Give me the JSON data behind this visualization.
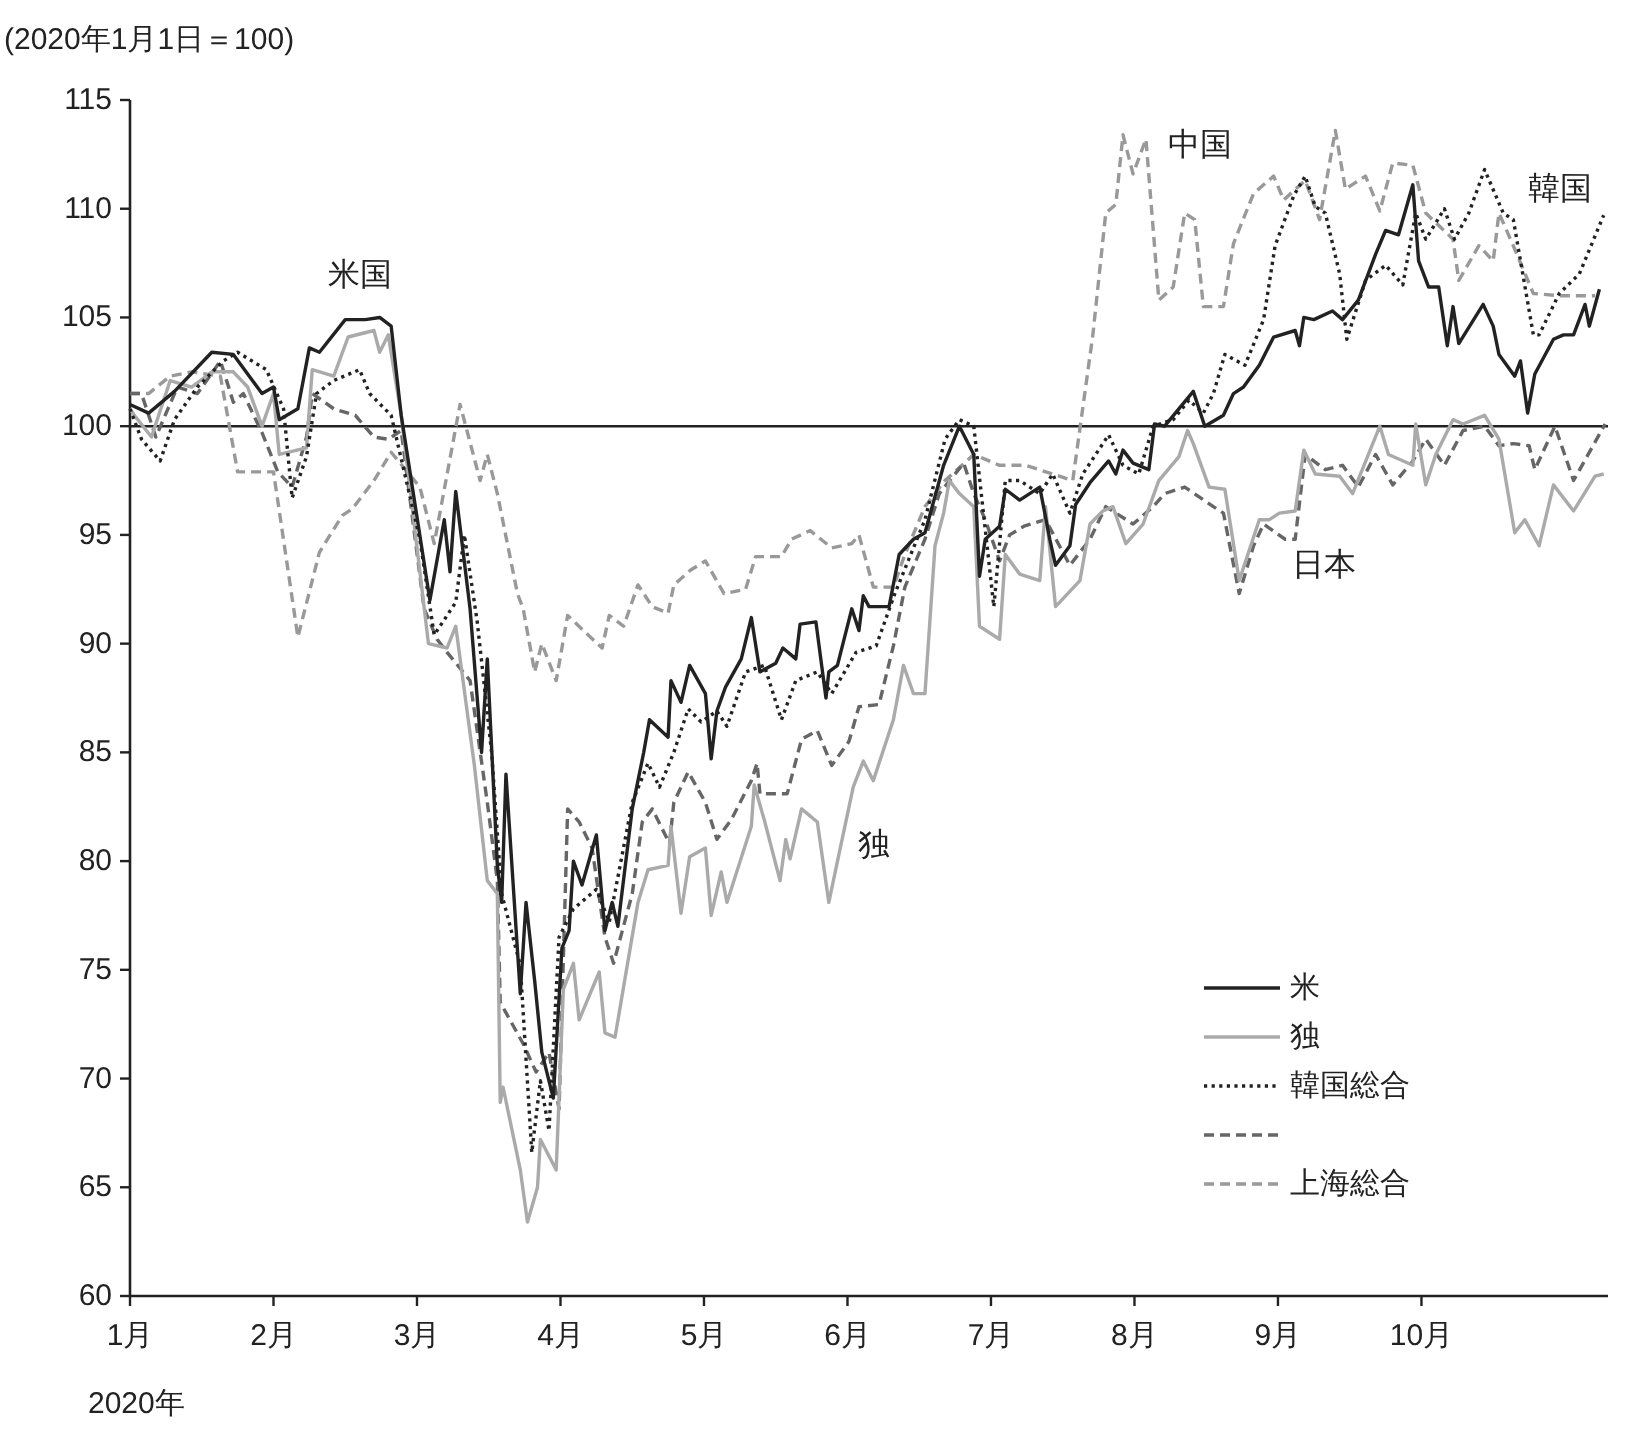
{
  "chart_data": {
    "type": "line",
    "ylabel": "(2020年1月1日＝100)",
    "xlabel": "2020年",
    "xlim": [
      1,
      11.3
    ],
    "ylim": [
      60,
      115
    ],
    "xticks": [
      {
        "value": 1,
        "label": "1月"
      },
      {
        "value": 2,
        "label": "2月"
      },
      {
        "value": 3,
        "label": "3月"
      },
      {
        "value": 4,
        "label": "4月"
      },
      {
        "value": 5,
        "label": "5月"
      },
      {
        "value": 6,
        "label": "6月"
      },
      {
        "value": 7,
        "label": "7月"
      },
      {
        "value": 8,
        "label": "8月"
      },
      {
        "value": 9,
        "label": "9月"
      },
      {
        "value": 10,
        "label": "10月"
      }
    ],
    "yticks": [
      60,
      65,
      70,
      75,
      80,
      85,
      90,
      95,
      100,
      105,
      110,
      115
    ],
    "grid": false,
    "legend": "bottom right",
    "ref_lines": [
      {
        "axis": "y",
        "value": 100,
        "color": "#222222"
      }
    ],
    "annotations": [
      "米国",
      "独",
      "中国",
      "韓国",
      "日本"
    ],
    "series": [
      {
        "name": "米",
        "color": "#222222",
        "line_style": "solid",
        "x": [
          1.0,
          1.13,
          1.31,
          1.57,
          1.72,
          1.92,
          2.0,
          2.04,
          2.17,
          2.25,
          2.32,
          2.5,
          2.64,
          2.74,
          2.82,
          2.89,
          3.09,
          3.19,
          3.23,
          3.27,
          3.37,
          3.45,
          3.49,
          3.56,
          3.59,
          3.62,
          3.72,
          3.76,
          3.82,
          3.87,
          3.95,
          4.01,
          4.06,
          4.09,
          4.15,
          4.25,
          4.31,
          4.36,
          4.4,
          4.5,
          4.58,
          4.62,
          4.75,
          4.77,
          4.84,
          4.9,
          5.01,
          5.05,
          5.09,
          5.15,
          5.26,
          5.33,
          5.39,
          5.5,
          5.55,
          5.64,
          5.67,
          5.78,
          5.85,
          5.87,
          5.93,
          6.03,
          6.08,
          6.11,
          6.15,
          6.29,
          6.36,
          6.46,
          6.54,
          6.67,
          6.78,
          6.88,
          6.92,
          6.96,
          7.06,
          7.1,
          7.2,
          7.34,
          7.41,
          7.45,
          7.55,
          7.59,
          7.69,
          7.82,
          7.87,
          7.92,
          7.99,
          8.1,
          8.14,
          8.21,
          8.41,
          8.49,
          8.62,
          8.69,
          8.76,
          8.87,
          8.97,
          9.12,
          9.15,
          9.18,
          9.25,
          9.38,
          9.45,
          9.56,
          9.68,
          9.75,
          9.84,
          9.94,
          9.98,
          10.05,
          10.12,
          10.18,
          10.22,
          10.26,
          10.43,
          10.5,
          10.54,
          10.65,
          10.69,
          10.74,
          10.79,
          10.92,
          10.99,
          11.06,
          11.14,
          11.17,
          11.24
        ],
        "values": [
          101,
          100.6,
          101.6,
          103.4,
          103.3,
          101.5,
          101.8,
          100.3,
          100.8,
          103.6,
          103.4,
          104.9,
          104.9,
          105,
          104.6,
          100.5,
          92,
          95.7,
          93.3,
          97,
          91.6,
          85,
          89.3,
          79.8,
          78.1,
          84,
          73.9,
          78.1,
          74.5,
          71.2,
          69.1,
          76,
          76.8,
          80,
          78.9,
          81.2,
          76.8,
          78.1,
          77,
          82.4,
          85,
          86.5,
          85.7,
          88.3,
          87.3,
          89,
          87.7,
          84.7,
          86.9,
          88,
          89.3,
          91.2,
          88.7,
          89.1,
          89.8,
          89.3,
          90.9,
          91,
          87.5,
          88.7,
          89,
          91.6,
          90.6,
          92.2,
          91.7,
          91.7,
          94.1,
          94.8,
          95.1,
          98.2,
          100,
          98.7,
          93.1,
          94.8,
          95.4,
          97.1,
          96.6,
          97.2,
          94.8,
          93.6,
          94.5,
          96.4,
          97.4,
          98.4,
          97.8,
          98.9,
          98.3,
          98,
          100.1,
          100,
          101.6,
          100,
          100.5,
          101.5,
          101.8,
          102.8,
          104.1,
          104.4,
          103.7,
          105,
          104.9,
          105.3,
          104.9,
          105.8,
          107.9,
          109,
          108.8,
          111.1,
          107.6,
          106.4,
          106.4,
          103.7,
          105.5,
          103.8,
          105.6,
          104.6,
          103.3,
          102.3,
          103,
          100.6,
          102.4,
          104,
          104.2,
          104.2,
          105.6,
          104.6,
          106.3
        ]
      },
      {
        "name": "独",
        "color": "#aaaaaa",
        "line_style": "solid",
        "x": [
          1.0,
          1.03,
          1.15,
          1.28,
          1.43,
          1.57,
          1.72,
          1.82,
          1.92,
          2.0,
          2.04,
          2.23,
          2.27,
          2.42,
          2.52,
          2.7,
          2.74,
          2.8,
          2.89,
          3.08,
          3.21,
          3.27,
          3.4,
          3.49,
          3.56,
          3.58,
          3.6,
          3.72,
          3.77,
          3.84,
          3.86,
          3.97,
          4.02,
          4.09,
          4.13,
          4.27,
          4.31,
          4.38,
          4.54,
          4.61,
          4.75,
          4.77,
          4.84,
          4.9,
          5.01,
          5.05,
          5.12,
          5.16,
          5.33,
          5.35,
          5.42,
          5.53,
          5.57,
          5.6,
          5.68,
          5.79,
          5.87,
          5.94,
          6.04,
          6.11,
          6.18,
          6.32,
          6.39,
          6.46,
          6.54,
          6.61,
          6.67,
          6.71,
          6.78,
          6.88,
          6.92,
          7.06,
          7.1,
          7.2,
          7.34,
          7.38,
          7.45,
          7.62,
          7.69,
          7.78,
          7.85,
          7.94,
          8.06,
          8.17,
          8.31,
          8.37,
          8.41,
          8.52,
          8.63,
          8.73,
          8.87,
          8.94,
          9.01,
          9.12,
          9.18,
          9.26,
          9.43,
          9.52,
          9.71,
          9.77,
          9.94,
          9.96,
          10.03,
          10.1,
          10.22,
          10.29,
          10.44,
          10.54,
          10.65,
          10.72,
          10.82,
          10.92,
          11.06,
          11.21,
          11.27
        ],
        "values": [
          100.8,
          100.5,
          99.5,
          102.1,
          101.8,
          102.5,
          102.5,
          101.8,
          100,
          101.5,
          98.7,
          99,
          102.6,
          102.3,
          104.1,
          104.4,
          103.4,
          104.2,
          100.5,
          90,
          89.8,
          90.8,
          84.4,
          79.1,
          78.5,
          68.9,
          69.6,
          65.8,
          63.4,
          65,
          67.2,
          65.8,
          74.1,
          75.3,
          72.7,
          74.9,
          72.1,
          71.9,
          78.1,
          79.6,
          79.8,
          81.6,
          77.6,
          80.2,
          80.6,
          77.5,
          79.5,
          78.1,
          81.6,
          83.5,
          81.9,
          79.1,
          81,
          80.1,
          82.4,
          81.8,
          78.1,
          80.3,
          83.4,
          84.6,
          83.7,
          86.5,
          89,
          87.7,
          87.7,
          94.5,
          96,
          97.5,
          96.9,
          96.3,
          90.8,
          90.2,
          94.1,
          93.2,
          92.9,
          96.3,
          91.7,
          92.9,
          95.5,
          96.1,
          96.3,
          94.6,
          95.5,
          97.5,
          98.6,
          99.8,
          99.2,
          97.2,
          97.1,
          92.9,
          95.7,
          95.7,
          96,
          96.1,
          98.9,
          97.8,
          97.7,
          96.9,
          100,
          98.7,
          98.2,
          100.1,
          97.3,
          98.7,
          100.3,
          100.1,
          100.5,
          99.4,
          95.1,
          95.7,
          94.5,
          97.3,
          96.1,
          97.7,
          97.8
        ]
      },
      {
        "name": "韓国総合",
        "color": "#222222",
        "line_style": "dotted",
        "x": [
          1.0,
          1.08,
          1.21,
          1.31,
          1.47,
          1.65,
          1.75,
          1.95,
          2.07,
          2.13,
          2.23,
          2.3,
          2.42,
          2.6,
          2.67,
          2.82,
          3.02,
          3.12,
          3.27,
          3.33,
          3.42,
          3.52,
          3.59,
          3.72,
          3.8,
          3.86,
          3.92,
          3.99,
          4.09,
          4.25,
          4.34,
          4.5,
          4.61,
          4.69,
          4.79,
          4.89,
          4.98,
          5.09,
          5.16,
          5.29,
          5.42,
          5.54,
          5.64,
          5.79,
          5.89,
          6.06,
          6.2,
          6.33,
          6.54,
          6.68,
          6.78,
          6.88,
          7.02,
          7.1,
          7.2,
          7.34,
          7.43,
          7.55,
          7.64,
          7.73,
          7.82,
          7.92,
          8.03,
          8.13,
          8.27,
          8.38,
          8.48,
          8.55,
          8.63,
          8.77,
          8.9,
          8.98,
          9.11,
          9.19,
          9.26,
          9.33,
          9.43,
          9.48,
          9.61,
          9.75,
          9.87,
          9.96,
          10.03,
          10.16,
          10.23,
          10.33,
          10.44,
          10.57,
          10.64,
          10.78,
          10.82,
          10.96,
          11.1,
          11.27
        ],
        "values": [
          100.8,
          99.4,
          98.4,
          100.3,
          101.8,
          103,
          103.4,
          102.6,
          100.8,
          96.7,
          98.6,
          101.5,
          102.1,
          102.6,
          101.5,
          100.5,
          94.8,
          90.4,
          91.9,
          95,
          91,
          85,
          78.5,
          75.2,
          66.6,
          69.9,
          67.6,
          76.5,
          77.8,
          78.7,
          77.2,
          82.7,
          84.5,
          83.4,
          85,
          87,
          86.4,
          86.9,
          86.2,
          88.7,
          89,
          86.5,
          88.3,
          88.7,
          87.7,
          89.6,
          89.9,
          92.3,
          95.7,
          99.4,
          100.3,
          100,
          91.7,
          97.5,
          97.5,
          96.9,
          97.8,
          96,
          97.8,
          98.7,
          99.6,
          98.2,
          97.8,
          100,
          100.3,
          101.2,
          100.6,
          101.5,
          103.3,
          102.8,
          104.9,
          108.3,
          110.6,
          111.5,
          110.1,
          109.8,
          107,
          104,
          106.7,
          107.4,
          106.5,
          109.8,
          108.6,
          110,
          108.6,
          109.8,
          111.8,
          109.8,
          109.5,
          104.2,
          104.2,
          106.1,
          107,
          109.7
        ]
      },
      {
        "name": null,
        "color": "#666666",
        "line_style": "dashed",
        "x": [
          1.0,
          1.08,
          1.18,
          1.33,
          1.47,
          1.63,
          1.72,
          1.79,
          1.92,
          2.03,
          2.13,
          2.23,
          2.27,
          2.42,
          2.57,
          2.7,
          2.8,
          2.89,
          3.05,
          3.14,
          3.21,
          3.37,
          3.49,
          3.56,
          3.58,
          3.74,
          3.83,
          3.92,
          3.99,
          4.05,
          4.13,
          4.22,
          4.31,
          4.37,
          4.5,
          4.57,
          4.64,
          4.76,
          4.79,
          4.89,
          5.01,
          5.09,
          5.19,
          5.33,
          5.37,
          5.39,
          5.58,
          5.68,
          5.79,
          5.89,
          6.01,
          6.08,
          6.22,
          6.32,
          6.4,
          6.54,
          6.64,
          6.81,
          6.88,
          6.96,
          7.06,
          7.13,
          7.23,
          7.38,
          7.55,
          7.69,
          7.8,
          7.99,
          8.13,
          8.21,
          8.35,
          8.55,
          8.62,
          8.73,
          8.83,
          8.9,
          9.05,
          9.12,
          9.19,
          9.33,
          9.45,
          9.56,
          9.68,
          9.8,
          9.94,
          10.03,
          10.16,
          10.29,
          10.44,
          10.54,
          10.64,
          10.75,
          10.79,
          10.93,
          11.06,
          11.28
        ],
        "values": [
          101.5,
          101.5,
          99.5,
          101.8,
          101.5,
          103,
          101.1,
          101.5,
          99.7,
          97.9,
          97.2,
          99.5,
          101.5,
          100.8,
          100.5,
          99.5,
          99.4,
          99.8,
          91.6,
          90.2,
          89.6,
          88.3,
          82.7,
          79.1,
          73.5,
          71.6,
          70.3,
          71.2,
          68.6,
          82.4,
          81.8,
          80.6,
          76.5,
          75.3,
          78.5,
          81.8,
          82.4,
          80.8,
          82.7,
          84.1,
          82.7,
          81,
          81.9,
          83.7,
          84.5,
          83.1,
          83.1,
          85.6,
          86,
          84.4,
          85.5,
          87.1,
          87.2,
          89.9,
          92.6,
          94.8,
          96.9,
          98.3,
          96.9,
          95.7,
          93.8,
          95,
          95.4,
          95.7,
          93.6,
          94.8,
          96.3,
          95.5,
          96.3,
          96.9,
          97.2,
          96.3,
          96,
          92.3,
          94.5,
          95.5,
          94.8,
          94.8,
          98.7,
          98,
          98.2,
          97.2,
          98.7,
          97.3,
          98.4,
          99.4,
          98.2,
          99.8,
          100,
          99.1,
          99.2,
          99.1,
          98,
          100,
          97.5,
          100.1
        ]
      },
      {
        "name": "上海総合",
        "color": "#999999",
        "line_style": "dashed",
        "x": [
          1.0,
          1.13,
          1.28,
          1.43,
          1.63,
          1.75,
          2.0,
          2.17,
          2.32,
          2.48,
          2.55,
          2.7,
          2.82,
          3.02,
          3.12,
          3.3,
          3.44,
          3.49,
          3.56,
          3.7,
          3.74,
          3.82,
          3.87,
          3.97,
          4.05,
          4.16,
          4.29,
          4.34,
          4.44,
          4.54,
          4.64,
          4.75,
          4.79,
          4.91,
          5.01,
          5.14,
          5.29,
          5.36,
          5.54,
          5.61,
          5.74,
          5.89,
          6.03,
          6.08,
          6.18,
          6.32,
          6.4,
          6.54,
          6.68,
          6.88,
          7.06,
          7.24,
          7.43,
          7.57,
          7.71,
          7.8,
          7.87,
          7.92,
          7.99,
          8.08,
          8.17,
          8.27,
          8.35,
          8.42,
          8.48,
          8.62,
          8.69,
          8.83,
          8.97,
          9.04,
          9.19,
          9.29,
          9.4,
          9.47,
          9.61,
          9.71,
          9.8,
          9.94,
          10.03,
          10.22,
          10.26,
          10.4,
          10.5,
          10.54,
          10.64,
          10.78,
          10.96,
          11.21
        ],
        "values": [
          101.5,
          101.5,
          102.3,
          102.5,
          102.3,
          97.9,
          97.9,
          90.3,
          94.2,
          95.9,
          96.2,
          97.5,
          98.8,
          97.2,
          94.6,
          101,
          97.5,
          98.7,
          96.9,
          92.3,
          91.6,
          88.7,
          90,
          88.3,
          91.3,
          90.6,
          89.8,
          91.3,
          90.8,
          92.7,
          91.7,
          91.4,
          92.7,
          93.4,
          93.8,
          92.3,
          92.5,
          94,
          94,
          94.8,
          95.2,
          94.4,
          94.6,
          95,
          92.6,
          92.6,
          94.1,
          96.3,
          97.5,
          98.7,
          98.2,
          98.2,
          97.8,
          97.5,
          104.2,
          109.8,
          110.2,
          113.4,
          111.6,
          113.2,
          105.8,
          106.4,
          109.8,
          109.5,
          105.5,
          105.5,
          108.4,
          110.7,
          111.5,
          110.4,
          111.3,
          109.5,
          113.6,
          110.9,
          111.5,
          109.9,
          112.1,
          112,
          109.8,
          108.6,
          106.7,
          108.3,
          107.6,
          109.8,
          108.3,
          106.1,
          106,
          106
        ]
      }
    ]
  }
}
